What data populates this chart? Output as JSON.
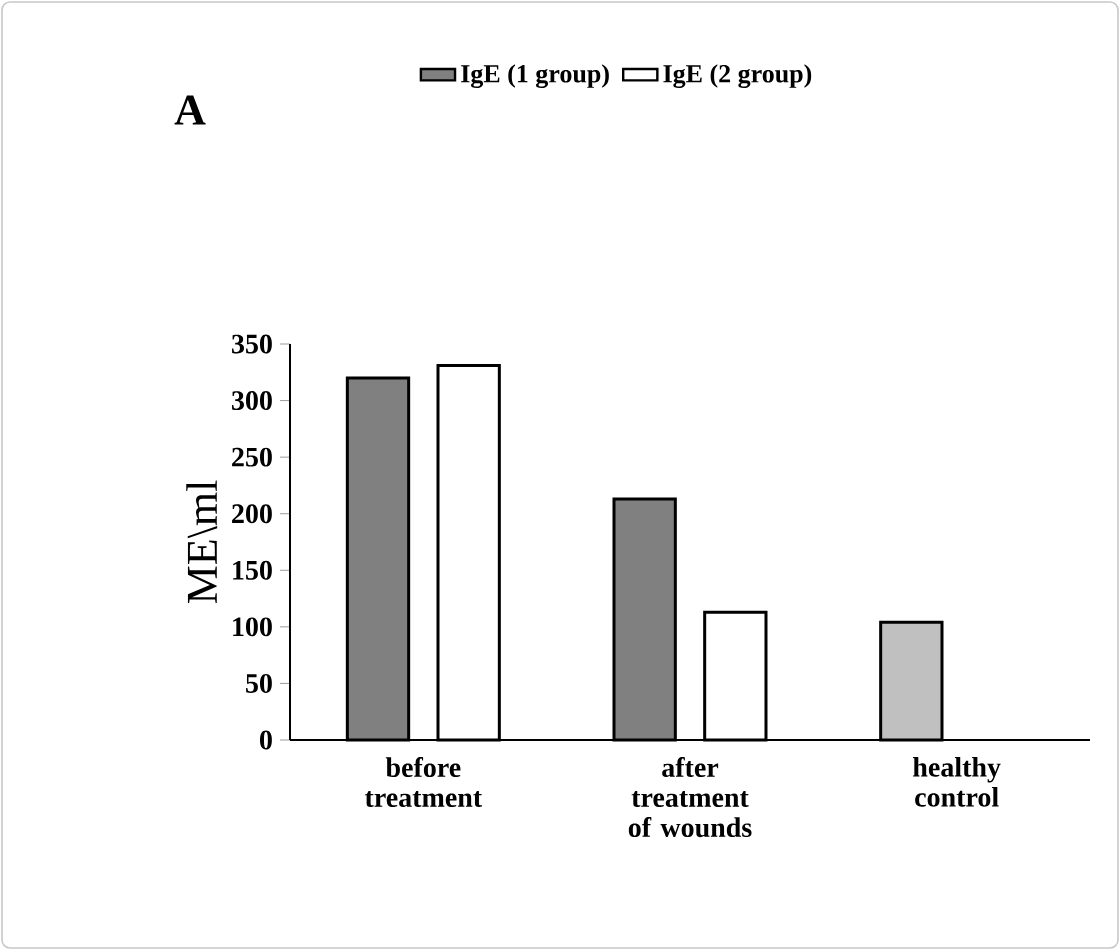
{
  "chart_data": {
    "type": "bar",
    "ylabel": "ME\\ml",
    "annotations": [
      "A"
    ],
    "categories": [
      "before treatment",
      "after treatment of wounds",
      "healthy control"
    ],
    "series": [
      {
        "name": "IgE (1 group)",
        "color": "#808080",
        "colors": [
          "#808080",
          "#808080",
          "#c0c0c0"
        ],
        "values": [
          320,
          213,
          104
        ]
      },
      {
        "name": "IgE (2 group)",
        "color": "#ffffff",
        "values": [
          331,
          113,
          null
        ]
      }
    ],
    "ylim": [
      0,
      350
    ],
    "yticks": [
      0,
      50,
      100,
      150,
      200,
      250,
      300,
      350
    ],
    "grid": false,
    "legend": "top"
  }
}
